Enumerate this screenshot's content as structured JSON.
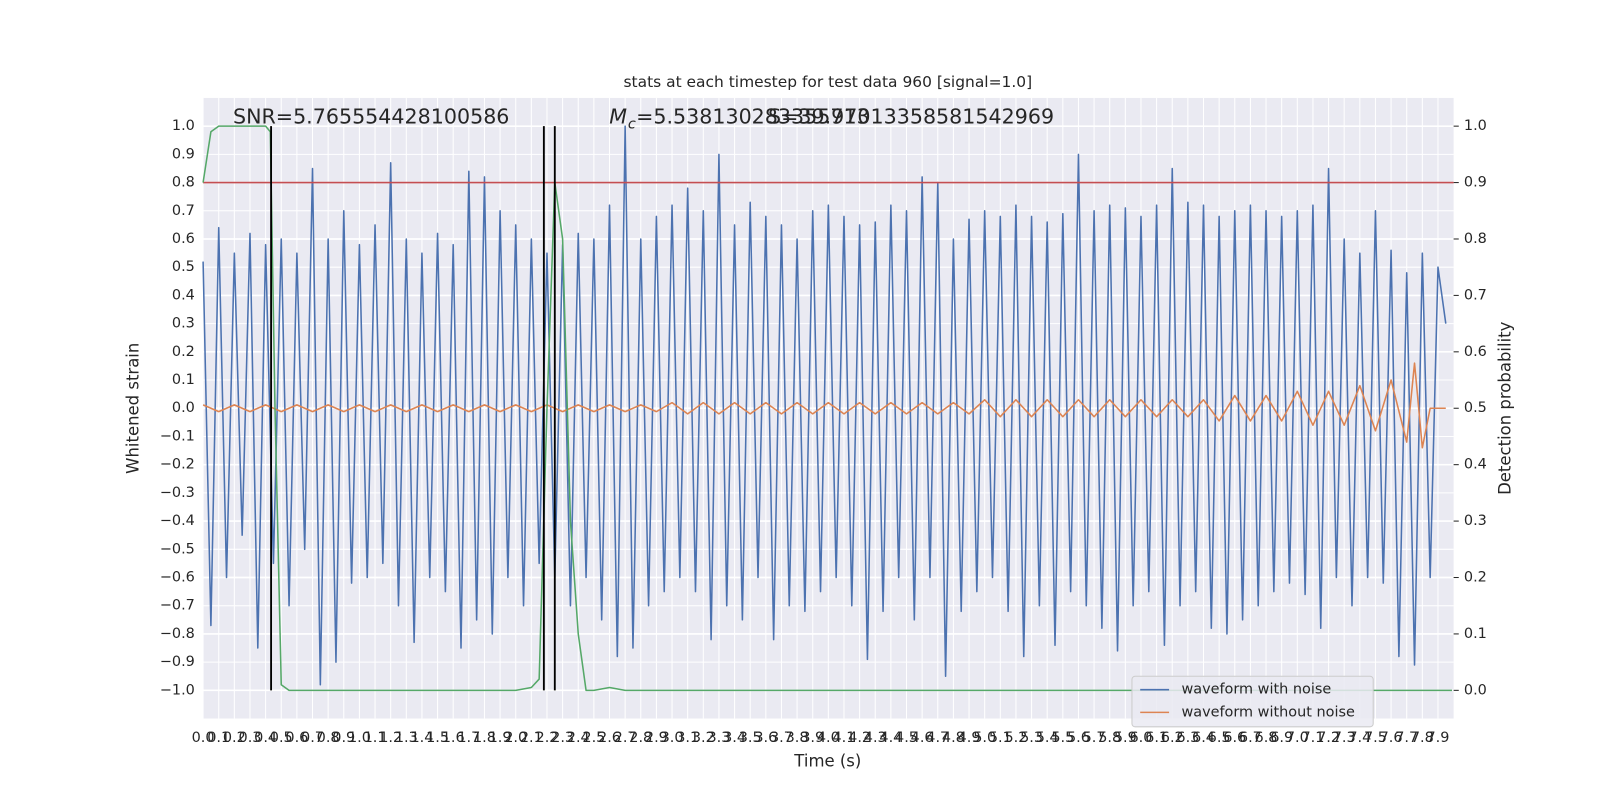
{
  "chart_data": {
    "type": "line",
    "title": "stats at each timestep for test data 960 [signal=1.0]",
    "x_label": "Time (s)",
    "y_label": "Whitened strain",
    "y2_label": "Detection probability",
    "annotations": {
      "snr": "SNR=5.765554428100586",
      "mc_symbol": "M",
      "mc_subscript": "c",
      "mc_value": "=5.538130283355713",
      "second": "S=39.97013358581542969"
    },
    "background": "#eaeaf2",
    "grid": true,
    "legend": "lower right",
    "xlim": [
      0,
      8.0
    ],
    "ylim": [
      -1.1,
      1.1
    ],
    "y2lim": [
      -0.05,
      1.05
    ],
    "xticks": [
      {
        "value": 0,
        "label": "0.0"
      },
      0.1,
      0.2,
      0.3,
      0.4,
      0.5,
      0.6,
      0.7,
      0.8,
      0.9,
      {
        "value": 1,
        "label": "1.0"
      },
      1.1,
      1.2,
      1.3,
      1.4,
      1.5,
      1.6,
      1.7,
      1.8,
      1.9,
      {
        "value": 2,
        "label": "2.0"
      },
      2.1,
      2.2,
      2.3,
      2.4,
      2.5,
      2.6,
      2.7,
      2.8,
      2.9,
      {
        "value": 3,
        "label": "3.0"
      },
      3.1,
      3.2,
      3.3,
      3.4,
      3.5,
      3.6,
      3.7,
      3.8,
      3.9,
      {
        "value": 4,
        "label": "4.0"
      },
      4.1,
      4.2,
      4.3,
      4.4,
      4.5,
      4.6,
      4.7,
      4.8,
      4.9,
      {
        "value": 5,
        "label": "5.0"
      },
      5.1,
      5.2,
      5.3,
      5.4,
      5.5,
      5.6,
      5.7,
      5.8,
      5.9,
      {
        "value": 6,
        "label": "6.0"
      },
      6.1,
      6.2,
      6.3,
      6.4,
      6.5,
      6.6,
      6.7,
      6.8,
      6.9,
      {
        "value": 7,
        "label": "7.0"
      },
      7.1,
      7.2,
      7.3,
      7.4,
      7.5,
      7.6,
      7.7,
      7.8,
      7.9
    ],
    "yticks": [
      {
        "value": -1,
        "label": "−1.0"
      },
      {
        "value": -0.9,
        "label": "−0.9"
      },
      {
        "value": -0.8,
        "label": "−0.8"
      },
      {
        "value": -0.7,
        "label": "−0.7"
      },
      {
        "value": -0.6,
        "label": "−0.6"
      },
      {
        "value": -0.5,
        "label": "−0.5"
      },
      {
        "value": -0.4,
        "label": "−0.4"
      },
      {
        "value": -0.3,
        "label": "−0.3"
      },
      {
        "value": -0.2,
        "label": "−0.2"
      },
      {
        "value": -0.1,
        "label": "−0.1"
      },
      {
        "value": 0,
        "label": "0.0"
      },
      0.1,
      0.2,
      0.3,
      0.4,
      0.5,
      0.6,
      0.7,
      0.8,
      0.9,
      {
        "value": 1,
        "label": "1.0"
      }
    ],
    "y2ticks": [
      {
        "value": 0,
        "label": "0.0"
      },
      0.1,
      0.2,
      0.3,
      0.4,
      0.5,
      0.6,
      0.7,
      0.8,
      0.9,
      {
        "value": 1,
        "label": "1.0"
      }
    ],
    "series": [
      {
        "name": "waveform with noise",
        "color": "#4c72b0",
        "x": [
          0,
          0.05,
          0.1,
          0.15,
          0.2,
          0.25,
          0.3,
          0.35,
          0.4,
          0.45,
          0.5,
          0.55,
          0.6,
          0.65,
          0.7,
          0.75,
          0.8,
          0.85,
          0.9,
          0.95,
          1,
          1.05,
          1.1,
          1.15,
          1.2,
          1.25,
          1.3,
          1.35,
          1.4,
          1.45,
          1.5,
          1.55,
          1.6,
          1.65,
          1.7,
          1.75,
          1.8,
          1.85,
          1.9,
          1.95,
          2,
          2.05,
          2.1,
          2.15,
          2.2,
          2.25,
          2.3,
          2.35,
          2.4,
          2.45,
          2.5,
          2.55,
          2.6,
          2.65,
          2.7,
          2.75,
          2.8,
          2.85,
          2.9,
          2.95,
          3,
          3.05,
          3.1,
          3.15,
          3.2,
          3.25,
          3.3,
          3.35,
          3.4,
          3.45,
          3.5,
          3.55,
          3.6,
          3.65,
          3.7,
          3.75,
          3.8,
          3.85,
          3.9,
          3.95,
          4,
          4.05,
          4.1,
          4.15,
          4.2,
          4.25,
          4.3,
          4.35,
          4.4,
          4.45,
          4.5,
          4.55,
          4.6,
          4.65,
          4.7,
          4.75,
          4.8,
          4.85,
          4.9,
          4.95,
          5,
          5.05,
          5.1,
          5.15,
          5.2,
          5.25,
          5.3,
          5.35,
          5.4,
          5.45,
          5.5,
          5.55,
          5.6,
          5.65,
          5.7,
          5.75,
          5.8,
          5.85,
          5.9,
          5.95,
          6,
          6.05,
          6.1,
          6.15,
          6.2,
          6.25,
          6.3,
          6.35,
          6.4,
          6.45,
          6.5,
          6.55,
          6.6,
          6.65,
          6.7,
          6.75,
          6.8,
          6.85,
          6.9,
          6.95,
          7,
          7.05,
          7.1,
          7.15,
          7.2,
          7.25,
          7.3,
          7.35,
          7.4,
          7.45,
          7.5,
          7.55,
          7.6,
          7.65,
          7.7,
          7.75,
          7.8,
          7.85,
          7.9,
          7.95
        ],
        "values": [
          0.52,
          -0.77,
          0.64,
          -0.6,
          0.55,
          -0.45,
          0.62,
          -0.85,
          0.58,
          -0.55,
          0.6,
          -0.7,
          0.55,
          -0.5,
          0.85,
          -0.98,
          0.6,
          -0.9,
          0.7,
          -0.62,
          0.58,
          -0.6,
          0.65,
          -0.55,
          0.87,
          -0.7,
          0.6,
          -0.83,
          0.55,
          -0.6,
          0.62,
          -0.65,
          0.58,
          -0.85,
          0.84,
          -0.75,
          0.82,
          -0.8,
          0.7,
          -0.6,
          0.65,
          -0.7,
          0.6,
          -0.55,
          0.55,
          -0.6,
          0.58,
          -0.7,
          0.62,
          -0.6,
          0.6,
          -0.75,
          0.72,
          -0.88,
          1.0,
          -0.85,
          0.6,
          -0.7,
          0.68,
          -0.65,
          0.72,
          -0.6,
          0.78,
          -0.65,
          0.7,
          -0.82,
          0.9,
          -0.7,
          0.65,
          -0.75,
          0.73,
          -0.6,
          0.68,
          -0.82,
          0.65,
          -0.7,
          0.6,
          -0.72,
          0.7,
          -0.65,
          0.72,
          -0.6,
          0.68,
          -0.7,
          0.65,
          -0.89,
          0.66,
          -0.72,
          0.72,
          -0.6,
          0.7,
          -0.75,
          0.82,
          -0.6,
          0.8,
          -0.95,
          0.6,
          -0.72,
          0.67,
          -0.65,
          0.7,
          -0.6,
          0.68,
          -0.72,
          0.72,
          -0.88,
          0.68,
          -0.7,
          0.66,
          -0.84,
          0.69,
          -0.65,
          0.9,
          -0.7,
          0.7,
          -0.78,
          0.72,
          -0.86,
          0.71,
          -0.7,
          0.68,
          -0.65,
          0.72,
          -0.84,
          0.85,
          -0.7,
          0.73,
          -0.65,
          0.72,
          -0.78,
          0.68,
          -0.8,
          0.7,
          -0.75,
          0.72,
          -0.7,
          0.7,
          -0.65,
          0.68,
          -0.62,
          0.7,
          -0.66,
          0.72,
          -0.78,
          0.85,
          -0.6,
          0.6,
          -0.7,
          0.55,
          -0.6,
          0.7,
          -0.62,
          0.56,
          -0.88,
          0.48,
          -0.91,
          0.55,
          -0.6,
          0.5,
          0.3
        ]
      },
      {
        "name": "waveform without noise",
        "color": "#dd8452",
        "x": [
          0,
          0.1,
          0.2,
          0.3,
          0.4,
          0.5,
          0.6,
          0.7,
          0.8,
          0.9,
          1,
          1.1,
          1.2,
          1.3,
          1.4,
          1.5,
          1.6,
          1.7,
          1.8,
          1.9,
          2,
          2.1,
          2.2,
          2.3,
          2.4,
          2.5,
          2.6,
          2.7,
          2.8,
          2.9,
          3,
          3.1,
          3.2,
          3.3,
          3.4,
          3.5,
          3.6,
          3.7,
          3.8,
          3.9,
          4,
          4.1,
          4.2,
          4.3,
          4.4,
          4.5,
          4.6,
          4.7,
          4.8,
          4.9,
          5,
          5.1,
          5.2,
          5.3,
          5.4,
          5.5,
          5.6,
          5.7,
          5.8,
          5.9,
          6,
          6.1,
          6.2,
          6.3,
          6.4,
          6.5,
          6.6,
          6.7,
          6.8,
          6.9,
          7,
          7.1,
          7.2,
          7.3,
          7.4,
          7.5,
          7.6,
          7.7,
          7.75,
          7.8,
          7.85,
          7.95
        ],
        "values": [
          0.012,
          -0.012,
          0.012,
          -0.012,
          0.012,
          -0.012,
          0.012,
          -0.012,
          0.012,
          -0.012,
          0.012,
          -0.012,
          0.012,
          -0.012,
          0.012,
          -0.012,
          0.012,
          -0.012,
          0.012,
          -0.012,
          0.012,
          -0.012,
          0.012,
          -0.012,
          0.012,
          -0.012,
          0.012,
          -0.012,
          0.012,
          -0.012,
          0.02,
          -0.02,
          0.02,
          -0.02,
          0.02,
          -0.02,
          0.02,
          -0.02,
          0.02,
          -0.02,
          0.02,
          -0.02,
          0.02,
          -0.02,
          0.02,
          -0.02,
          0.02,
          -0.02,
          0.02,
          -0.02,
          0.03,
          -0.03,
          0.03,
          -0.03,
          0.03,
          -0.03,
          0.03,
          -0.03,
          0.03,
          -0.03,
          0.03,
          -0.03,
          0.03,
          -0.03,
          0.03,
          -0.045,
          0.045,
          -0.045,
          0.045,
          -0.045,
          0.06,
          -0.06,
          0.06,
          -0.06,
          0.08,
          -0.08,
          0.1,
          -0.12,
          0.16,
          -0.14,
          0,
          0
        ]
      }
    ],
    "detection_probability": {
      "color": "#55a868",
      "axis": "y2",
      "x": [
        0,
        0.05,
        0.1,
        0.2,
        0.3,
        0.4,
        0.43,
        0.46,
        0.5,
        0.55,
        0.6,
        1,
        1.5,
        2,
        2.1,
        2.15,
        2.2,
        2.25,
        2.3,
        2.35,
        2.4,
        2.45,
        2.5,
        2.6,
        2.7,
        3,
        7.99
      ],
      "values": [
        0.9,
        0.99,
        1.0,
        1.0,
        1.0,
        1.0,
        0.99,
        0.5,
        0.01,
        0.0,
        0.0,
        0.0,
        0.0,
        0.0,
        0.005,
        0.02,
        0.5,
        0.9,
        0.8,
        0.3,
        0.1,
        0.0,
        0.0,
        0.005,
        0.0,
        0.0,
        0.0
      ]
    },
    "threshold": {
      "value": 0.9,
      "axis": "y2",
      "color": "#c44e52"
    },
    "event_lines": {
      "x": [
        0.435,
        2.18,
        2.25
      ],
      "ymin": 0,
      "ymax": 1,
      "axis": "y2",
      "color": "#000000"
    }
  }
}
